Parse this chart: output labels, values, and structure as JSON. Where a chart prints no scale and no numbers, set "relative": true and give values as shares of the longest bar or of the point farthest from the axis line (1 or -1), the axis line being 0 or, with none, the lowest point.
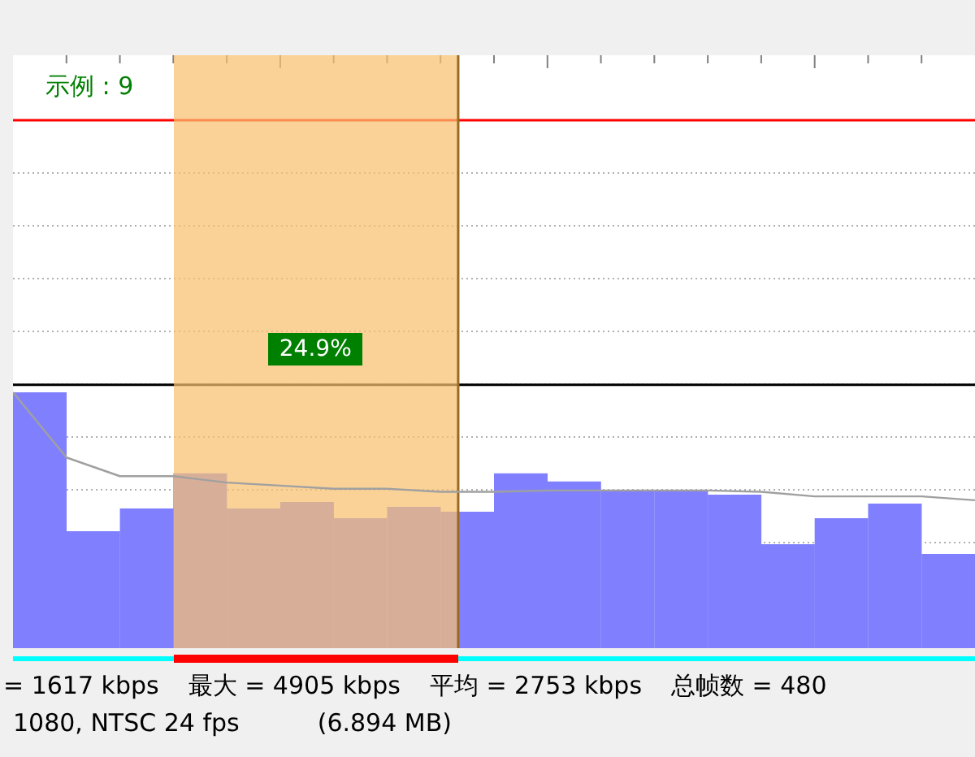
{
  "chart_data": [
    {
      "type": "bar",
      "relative": true,
      "legend": false,
      "grid": true,
      "categories": [
        null,
        null,
        null,
        null,
        null,
        null,
        null,
        null,
        null,
        null,
        null,
        null,
        null,
        null,
        null,
        null,
        null,
        null
      ],
      "values": [
        1,
        0.457,
        0.546,
        0.683,
        0.546,
        0.571,
        0.508,
        0.552,
        0.533,
        0.683,
        0.651,
        0.616,
        0.616,
        0.6,
        0.406,
        0.508,
        0.565,
        0.368
      ],
      "color": "#8080ff",
      "ref_lines": [
        {
          "axis": "y",
          "value": 2.063,
          "color": "#ff0000"
        },
        {
          "axis": "y",
          "value": 1.029,
          "color": "#000000"
        }
      ],
      "annotations": [
        "示例 : 9",
        "24.9%",
        "= 1617 kbps",
        "最大 = 4905 kbps",
        "平均 = 2753 kbps",
        "总帧数 = 480",
        "1080, NTSC 24 fps",
        "(6.894 MB)"
      ]
    },
    {
      "type": "line",
      "relative": true,
      "legend": false,
      "marker": "none",
      "categories": [
        null,
        null,
        null,
        null,
        null,
        null,
        null,
        null,
        null,
        null,
        null,
        null,
        null,
        null,
        null,
        null,
        null,
        null,
        null
      ],
      "values": [
        1,
        0.745,
        0.672,
        0.672,
        0.647,
        0.635,
        0.623,
        0.623,
        0.611,
        0.611,
        0.616,
        0.616,
        0.616,
        0.616,
        0.611,
        0.593,
        0.593,
        0.593,
        0.578
      ],
      "color": "#a0a0a0"
    }
  ]
}
